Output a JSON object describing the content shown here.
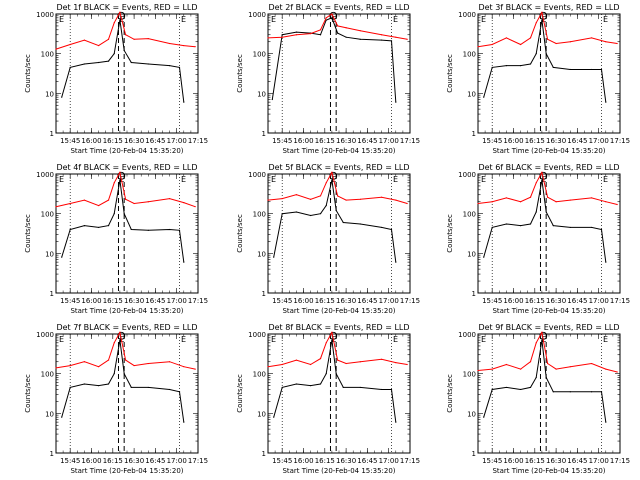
{
  "figure": {
    "panel_titles": [
      "Det 1f BLACK = Events, RED = LLD",
      "Det 2f BLACK = Events, RED = LLD",
      "Det 3f BLACK = Events, RED = LLD",
      "Det 4f BLACK = Events, RED = LLD",
      "Det 5f BLACK = Events, RED = LLD",
      "Det 6f BLACK = Events, RED = LLD",
      "Det 7f BLACK = Events, RED = LLD",
      "Det 8f BLACK = Events, RED = LLD",
      "Det 9f BLACK = Events, RED = LLD"
    ],
    "ylabel": "Counts/sec",
    "xlabel": "Start Time (20-Feb-04 15:35:20)",
    "x_tick_labels": [
      "15:45",
      "16:00",
      "16:15",
      "16:30",
      "16:45",
      "17:00",
      "17:15"
    ],
    "y_tick_labels": [
      "1",
      "10",
      "100",
      "1000"
    ],
    "corner_labels": [
      "E",
      "E",
      "E"
    ],
    "colors": {
      "events": "#000000",
      "lld": "#ff0000",
      "axes": "#000000"
    }
  },
  "chart_data": [
    {
      "type": "line",
      "title": "Det 1f BLACK = Events, RED = LLD",
      "xlabel": "Start Time (20-Feb-04 15:35:20)",
      "ylabel": "Counts/sec",
      "y_scale": "log",
      "xlim": [
        "15:35",
        "17:15"
      ],
      "ylim": [
        1,
        1000
      ],
      "series": [
        {
          "name": "Events",
          "color": "#000000",
          "x": [
            "15:39",
            "15:45",
            "15:55",
            "16:05",
            "16:12",
            "16:16",
            "16:20",
            "16:23",
            "16:28",
            "16:40",
            "16:55",
            "17:02",
            "17:05"
          ],
          "values": [
            8,
            45,
            55,
            60,
            65,
            100,
            700,
            120,
            60,
            55,
            50,
            45,
            6
          ]
        },
        {
          "name": "LLD",
          "color": "#ff0000",
          "x": [
            "15:35",
            "15:45",
            "15:55",
            "16:05",
            "16:12",
            "16:16",
            "16:20",
            "16:24",
            "16:30",
            "16:40",
            "16:55",
            "17:05",
            "17:13"
          ],
          "values": [
            130,
            170,
            220,
            160,
            230,
            600,
            1100,
            300,
            230,
            240,
            180,
            160,
            150
          ]
        }
      ]
    },
    {
      "type": "line",
      "title": "Det 2f BLACK = Events, RED = LLD",
      "xlabel": "Start Time (20-Feb-04 15:35:20)",
      "ylabel": "Counts/sec",
      "y_scale": "log",
      "xlim": [
        "15:35",
        "17:15"
      ],
      "ylim": [
        1,
        1000
      ],
      "series": [
        {
          "name": "Events",
          "color": "#000000",
          "x": [
            "15:38",
            "15:45",
            "15:55",
            "16:05",
            "16:12",
            "16:16",
            "16:20",
            "16:24",
            "16:30",
            "16:40",
            "16:55",
            "17:02",
            "17:05"
          ],
          "values": [
            7,
            300,
            350,
            330,
            300,
            700,
            800,
            330,
            260,
            230,
            220,
            210,
            6
          ]
        },
        {
          "name": "LLD",
          "color": "#ff0000",
          "x": [
            "15:35",
            "15:45",
            "15:55",
            "16:05",
            "16:12",
            "16:16",
            "16:20",
            "16:24",
            "16:30",
            "16:40",
            "16:55",
            "17:05",
            "17:13"
          ],
          "values": [
            250,
            260,
            300,
            320,
            400,
            800,
            1000,
            500,
            450,
            380,
            300,
            260,
            230
          ]
        }
      ]
    },
    {
      "type": "line",
      "title": "Det 3f BLACK = Events, RED = LLD",
      "xlabel": "Start Time (20-Feb-04 15:35:20)",
      "ylabel": "Counts/sec",
      "y_scale": "log",
      "xlim": [
        "15:35",
        "17:15"
      ],
      "ylim": [
        1,
        1000
      ],
      "series": [
        {
          "name": "Events",
          "color": "#000000",
          "x": [
            "15:39",
            "15:45",
            "15:55",
            "16:05",
            "16:12",
            "16:16",
            "16:20",
            "16:23",
            "16:28",
            "16:40",
            "16:55",
            "17:02",
            "17:05"
          ],
          "values": [
            8,
            45,
            50,
            50,
            55,
            100,
            700,
            100,
            45,
            40,
            40,
            40,
            6
          ]
        },
        {
          "name": "LLD",
          "color": "#ff0000",
          "x": [
            "15:35",
            "15:45",
            "15:55",
            "16:05",
            "16:12",
            "16:16",
            "16:20",
            "16:24",
            "16:30",
            "16:40",
            "16:55",
            "17:05",
            "17:13"
          ],
          "values": [
            150,
            170,
            250,
            170,
            250,
            600,
            1100,
            230,
            180,
            200,
            250,
            200,
            180
          ]
        }
      ]
    },
    {
      "type": "line",
      "title": "Det 4f BLACK = Events, RED = LLD",
      "xlabel": "Start Time (20-Feb-04 15:35:20)",
      "ylabel": "Counts/sec",
      "y_scale": "log",
      "xlim": [
        "15:35",
        "17:15"
      ],
      "ylim": [
        1,
        1000
      ],
      "series": [
        {
          "name": "Events",
          "color": "#000000",
          "x": [
            "15:39",
            "15:45",
            "15:55",
            "16:05",
            "16:12",
            "16:16",
            "16:20",
            "16:23",
            "16:28",
            "16:40",
            "16:55",
            "17:02",
            "17:05"
          ],
          "values": [
            8,
            40,
            50,
            45,
            50,
            100,
            700,
            100,
            40,
            38,
            40,
            38,
            6
          ]
        },
        {
          "name": "LLD",
          "color": "#ff0000",
          "x": [
            "15:35",
            "15:45",
            "15:55",
            "16:05",
            "16:12",
            "16:16",
            "16:20",
            "16:24",
            "16:30",
            "16:40",
            "16:55",
            "17:05",
            "17:13"
          ],
          "values": [
            150,
            180,
            220,
            160,
            220,
            600,
            1100,
            230,
            180,
            200,
            240,
            190,
            150
          ]
        }
      ]
    },
    {
      "type": "line",
      "title": "Det 5f BLACK = Events, RED = LLD",
      "xlabel": "Start Time (20-Feb-04 15:35:20)",
      "ylabel": "Counts/sec",
      "y_scale": "log",
      "xlim": [
        "15:35",
        "17:15"
      ],
      "ylim": [
        1,
        1000
      ],
      "series": [
        {
          "name": "Events",
          "color": "#000000",
          "x": [
            "15:39",
            "15:45",
            "15:55",
            "16:05",
            "16:12",
            "16:16",
            "16:20",
            "16:23",
            "16:28",
            "16:40",
            "16:55",
            "17:02",
            "17:05"
          ],
          "values": [
            8,
            100,
            110,
            90,
            100,
            160,
            700,
            120,
            60,
            55,
            45,
            40,
            6
          ]
        },
        {
          "name": "LLD",
          "color": "#ff0000",
          "x": [
            "15:35",
            "15:45",
            "15:55",
            "16:05",
            "16:12",
            "16:16",
            "16:20",
            "16:24",
            "16:30",
            "16:40",
            "16:55",
            "17:05",
            "17:13"
          ],
          "values": [
            220,
            240,
            300,
            230,
            280,
            600,
            1100,
            280,
            220,
            230,
            260,
            220,
            180
          ]
        }
      ]
    },
    {
      "type": "line",
      "title": "Det 6f BLACK = Events, RED = LLD",
      "xlabel": "Start Time (20-Feb-04 15:35:20)",
      "ylabel": "Counts/sec",
      "y_scale": "log",
      "xlim": [
        "15:35",
        "17:15"
      ],
      "ylim": [
        1,
        1000
      ],
      "series": [
        {
          "name": "Events",
          "color": "#000000",
          "x": [
            "15:39",
            "15:45",
            "15:55",
            "16:05",
            "16:12",
            "16:16",
            "16:20",
            "16:23",
            "16:28",
            "16:40",
            "16:55",
            "17:02",
            "17:05"
          ],
          "values": [
            8,
            45,
            55,
            50,
            55,
            110,
            700,
            110,
            50,
            45,
            45,
            40,
            6
          ]
        },
        {
          "name": "LLD",
          "color": "#ff0000",
          "x": [
            "15:35",
            "15:45",
            "15:55",
            "16:05",
            "16:12",
            "16:16",
            "16:20",
            "16:24",
            "16:30",
            "16:40",
            "16:55",
            "17:05",
            "17:13"
          ],
          "values": [
            180,
            200,
            250,
            200,
            260,
            600,
            1100,
            260,
            200,
            220,
            250,
            200,
            170
          ]
        }
      ]
    },
    {
      "type": "line",
      "title": "Det 7f BLACK = Events, RED = LLD",
      "xlabel": "Start Time (20-Feb-04 15:35:20)",
      "ylabel": "Counts/sec",
      "y_scale": "log",
      "xlim": [
        "15:35",
        "17:15"
      ],
      "ylim": [
        1,
        1000
      ],
      "series": [
        {
          "name": "Events",
          "color": "#000000",
          "x": [
            "15:39",
            "15:45",
            "15:55",
            "16:05",
            "16:12",
            "16:16",
            "16:20",
            "16:23",
            "16:28",
            "16:40",
            "16:55",
            "17:02",
            "17:05"
          ],
          "values": [
            8,
            45,
            55,
            50,
            55,
            100,
            700,
            100,
            45,
            45,
            40,
            35,
            6
          ]
        },
        {
          "name": "LLD",
          "color": "#ff0000",
          "x": [
            "15:35",
            "15:45",
            "15:55",
            "16:05",
            "16:12",
            "16:16",
            "16:20",
            "16:24",
            "16:30",
            "16:40",
            "16:55",
            "17:05",
            "17:13"
          ],
          "values": [
            140,
            160,
            200,
            150,
            220,
            600,
            1100,
            220,
            160,
            180,
            200,
            150,
            130
          ]
        }
      ]
    },
    {
      "type": "line",
      "title": "Det 8f BLACK = Events, RED = LLD",
      "xlabel": "Start Time (20-Feb-04 15:35:20)",
      "ylabel": "Counts/sec",
      "y_scale": "log",
      "xlim": [
        "15:35",
        "17:15"
      ],
      "ylim": [
        1,
        1000
      ],
      "series": [
        {
          "name": "Events",
          "color": "#000000",
          "x": [
            "15:39",
            "15:45",
            "15:55",
            "16:05",
            "16:12",
            "16:16",
            "16:20",
            "16:23",
            "16:28",
            "16:40",
            "16:55",
            "17:02",
            "17:05"
          ],
          "values": [
            8,
            45,
            55,
            50,
            55,
            100,
            700,
            100,
            45,
            45,
            40,
            40,
            6
          ]
        },
        {
          "name": "LLD",
          "color": "#ff0000",
          "x": [
            "15:35",
            "15:45",
            "15:55",
            "16:05",
            "16:12",
            "16:16",
            "16:20",
            "16:24",
            "16:30",
            "16:40",
            "16:55",
            "17:05",
            "17:13"
          ],
          "values": [
            150,
            170,
            220,
            170,
            240,
            600,
            1100,
            220,
            180,
            200,
            230,
            190,
            170
          ]
        }
      ]
    },
    {
      "type": "line",
      "title": "Det 9f BLACK = Events, RED = LLD",
      "xlabel": "Start Time (20-Feb-04 15:35:20)",
      "ylabel": "Counts/sec",
      "y_scale": "log",
      "xlim": [
        "15:35",
        "17:15"
      ],
      "ylim": [
        1,
        1000
      ],
      "series": [
        {
          "name": "Events",
          "color": "#000000",
          "x": [
            "15:39",
            "15:45",
            "15:55",
            "16:05",
            "16:12",
            "16:16",
            "16:20",
            "16:23",
            "16:28",
            "16:40",
            "16:55",
            "17:02",
            "17:05"
          ],
          "values": [
            8,
            40,
            45,
            40,
            45,
            80,
            700,
            80,
            35,
            35,
            35,
            35,
            6
          ]
        },
        {
          "name": "LLD",
          "color": "#ff0000",
          "x": [
            "15:35",
            "15:45",
            "15:55",
            "16:05",
            "16:12",
            "16:16",
            "16:20",
            "16:24",
            "16:30",
            "16:40",
            "16:55",
            "17:05",
            "17:13"
          ],
          "values": [
            120,
            130,
            170,
            130,
            200,
            600,
            1100,
            180,
            130,
            150,
            180,
            130,
            110
          ]
        }
      ]
    }
  ]
}
